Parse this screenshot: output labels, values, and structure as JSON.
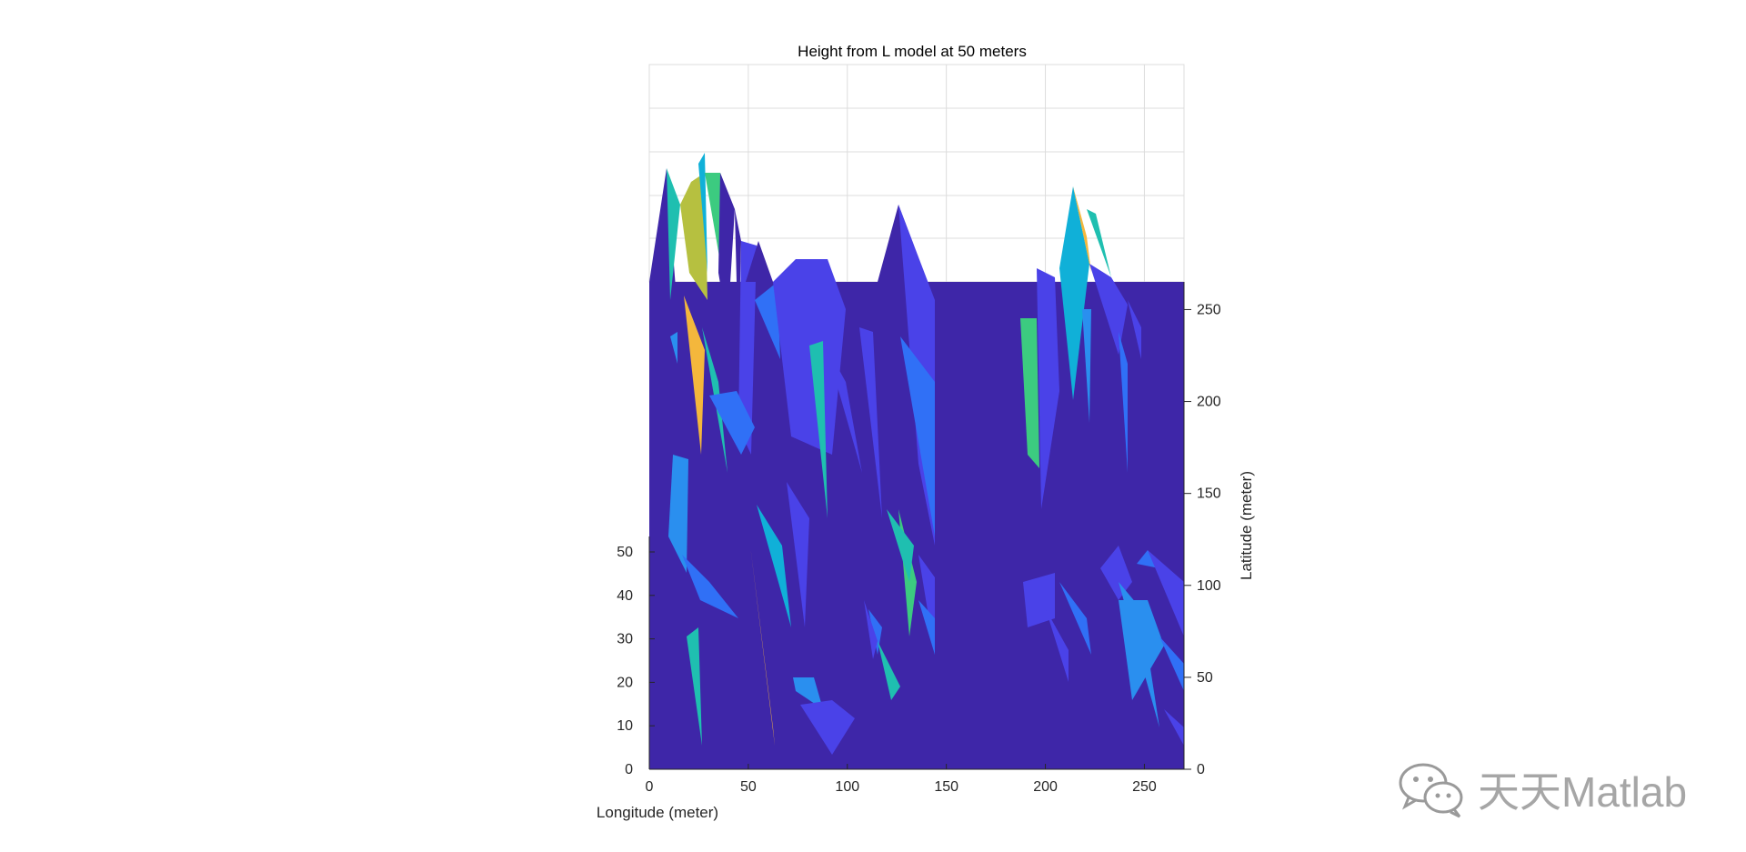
{
  "chart_data": {
    "type": "surface",
    "title": "Height from L model at 50 meters",
    "xlabel": "Longitude (meter)",
    "ylabel": "Latitude (meter)",
    "zlabel": "",
    "xlim": [
      0,
      270
    ],
    "ylim": [
      0,
      270
    ],
    "zlim": [
      0,
      160
    ],
    "xticks": [
      "0",
      "50",
      "100",
      "150",
      "200",
      "250"
    ],
    "yticks": [
      "0",
      "50",
      "100",
      "150",
      "200",
      "250"
    ],
    "zticks": [
      "0",
      "10",
      "20",
      "30",
      "40",
      "50"
    ],
    "grid": true,
    "view": "3-D oblique, x axis along bottom, y axis on right side, z axis on left side",
    "colormap": "parula",
    "base_color": "#3e26a8",
    "palette": {
      "dark": "#3e26a8",
      "violet": "#4a42e8",
      "blue": "#3070f6",
      "lightblue": "#2a8fef",
      "cyan": "#10b0d8",
      "teal": "#1fbfb0",
      "green": "#3ccb80",
      "olive": "#b6c040",
      "yellow": "#f4b73c"
    },
    "peaks": [
      {
        "x": 8,
        "height": 135,
        "color_class": "dark"
      },
      {
        "x": 27,
        "height": 150,
        "color_class": "cyan"
      },
      {
        "x": 30,
        "height": 145,
        "color_class": "olive"
      },
      {
        "x": 50,
        "height": 110,
        "color_class": "dark"
      },
      {
        "x": 75,
        "height": 100,
        "color_class": "violet"
      },
      {
        "x": 90,
        "height": 100,
        "color_class": "violet"
      },
      {
        "x": 125,
        "height": 125,
        "color_class": "violet"
      },
      {
        "x": 215,
        "height": 130,
        "color_class": "cyan"
      },
      {
        "x": 220,
        "height": 120,
        "color_class": "yellow"
      },
      {
        "x": 228,
        "height": 115,
        "color_class": "cyan"
      }
    ]
  },
  "watermark": {
    "text": "天天Matlab",
    "icon": "wechat-icon"
  }
}
